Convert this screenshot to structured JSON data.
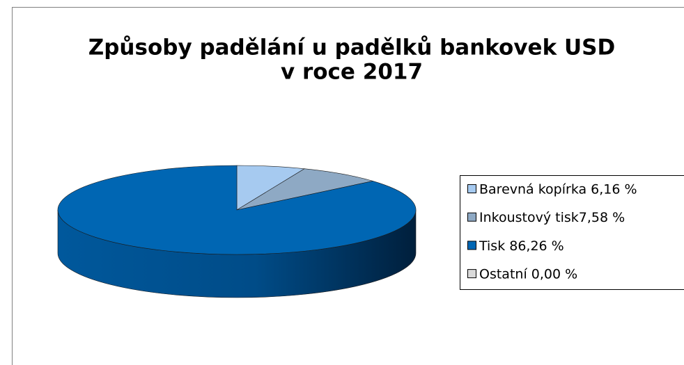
{
  "chart_data": {
    "type": "pie3d",
    "title": [
      "Způsoby padělání u padělků bankovek USD",
      "v roce 2017"
    ],
    "categories": [
      "Barevná kopírka 6,16 %",
      "Inkoustový tisk7,58 %",
      "Tisk 86,26 %",
      "Ostatní 0,00 %"
    ],
    "values": [
      6.16,
      7.58,
      86.26,
      0
    ],
    "colors": [
      "#a6caf0",
      "#8ea9c4",
      "#0066b3",
      "#d9d9d9"
    ]
  }
}
